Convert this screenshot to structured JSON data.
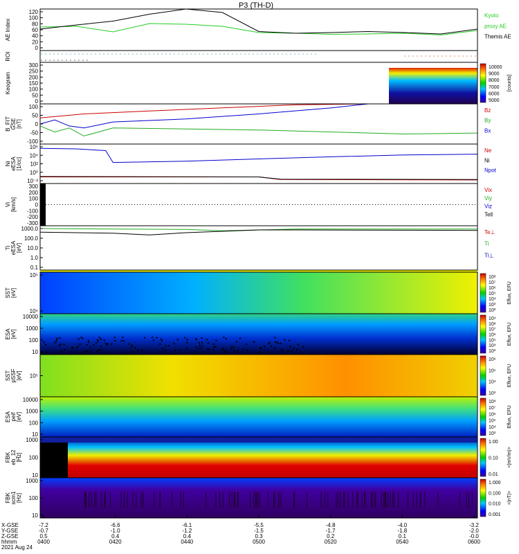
{
  "chart_data": {
    "type": "line",
    "title": "P3 (TH-D)",
    "panels": [
      {
        "id": "ae",
        "labels": [
          "AE Index"
        ],
        "yticks": [
          "120",
          "100",
          "80",
          "60",
          "40",
          "20",
          "0"
        ],
        "ylim": [
          0,
          120
        ],
        "legend": [
          {
            "text": "Kyoto",
            "color": "#22cc22"
          },
          {
            "text": "proxy AE",
            "color": "#22cc22"
          },
          {
            "text": "Themis AE",
            "color": "#000000"
          }
        ],
        "series": [
          {
            "name": "Kyoto proxy AE",
            "color": "#22cc22",
            "x": [
              0,
              5,
              10,
              15,
              20,
              25,
              30,
              35,
              40,
              45,
              50,
              55,
              60
            ],
            "y": [
              68,
              70,
              54,
              78,
              76,
              70,
              52,
              50,
              47,
              48,
              50,
              45,
              58
            ]
          },
          {
            "name": "Themis AE",
            "color": "#000000",
            "x": [
              0,
              5,
              10,
              15,
              20,
              25,
              30,
              35,
              40,
              45,
              50,
              55,
              60
            ],
            "y": [
              62,
              74,
              85,
              105,
              120,
              110,
              55,
              50,
              52,
              55,
              52,
              48,
              62
            ]
          }
        ]
      },
      {
        "id": "roi",
        "labels": [
          "ROI"
        ],
        "yticks": [],
        "legend": []
      },
      {
        "id": "keogram",
        "labels": [
          "Keogram"
        ],
        "yticks": [
          "300",
          "250",
          "200",
          "150",
          "100",
          "50",
          "0"
        ],
        "legend": [],
        "colorbar": {
          "label": "[counts]",
          "ticks": [
            "10000",
            "9000",
            "8000",
            "7000",
            "6000",
            "5000"
          ]
        }
      },
      {
        "id": "bfit",
        "labels": [
          "B_FIT",
          "GSE",
          "[nT]"
        ],
        "yticks": [
          "100",
          "50",
          "0",
          "-50",
          "-100"
        ],
        "ylim": [
          -100,
          100
        ],
        "legend": [
          {
            "text": "Bz",
            "color": "#cc0000"
          },
          {
            "text": "By",
            "color": "#22aa22"
          },
          {
            "text": "Bx",
            "color": "#0000cc"
          }
        ],
        "series": [
          {
            "name": "Bz",
            "color": "#cc0000",
            "x": [
              0,
              6,
              15,
              25,
              35,
              45,
              50
            ],
            "y": [
              30,
              50,
              65,
              80,
              95,
              100,
              100
            ]
          },
          {
            "name": "By",
            "color": "#22aa22",
            "x": [
              0,
              2,
              4,
              6,
              8,
              10,
              30,
              40,
              50,
              60
            ],
            "y": [
              -10,
              -40,
              -20,
              -60,
              -40,
              -20,
              -30,
              -40,
              -50,
              -45
            ]
          },
          {
            "name": "Bx",
            "color": "#0000cc",
            "x": [
              0,
              2,
              4,
              6,
              10,
              20,
              30,
              40,
              45
            ],
            "y": [
              0,
              20,
              -10,
              -20,
              10,
              25,
              50,
              80,
              100
            ]
          }
        ]
      },
      {
        "id": "ni",
        "labels": [
          "Ni",
          "eESA",
          "[1/cc]"
        ],
        "yticks": [
          "10⁶",
          "10⁴",
          "10²",
          "10⁰",
          "10⁻²"
        ],
        "legend": [
          {
            "text": "Ne",
            "color": "#cc0000"
          },
          {
            "text": "Ni",
            "color": "#000000"
          },
          {
            "text": "Npot",
            "color": "#0000cc"
          }
        ],
        "series": [
          {
            "name": "Ni",
            "color": "#0000cc",
            "x": [
              0,
              5,
              9,
              10,
              20,
              30,
              40,
              50,
              60
            ],
            "y": [
              5.0,
              4.9,
              4.5,
              1.8,
              2.1,
              2.6,
              3.1,
              3.5,
              3.7
            ]
          },
          {
            "name": "Ne",
            "color": "#cc0000",
            "x": [
              0,
              30,
              33,
              60
            ],
            "y": [
              -1.5,
              -1.5,
              -2.1,
              -2.2
            ]
          },
          {
            "name": "Npot",
            "color": "#000000",
            "x": [
              0,
              30,
              33,
              60
            ],
            "y": [
              -1.4,
              -1.5,
              -2.0,
              -2.1
            ]
          }
        ]
      },
      {
        "id": "vi",
        "labels": [
          "Vi",
          "[km/s]"
        ],
        "yticks": [
          "300",
          "200",
          "100",
          "0",
          "-100",
          "-200",
          "-300"
        ],
        "legend": [
          {
            "text": "Vix",
            "color": "#cc0000"
          },
          {
            "text": "Viy",
            "color": "#22aa22"
          },
          {
            "text": "Viz",
            "color": "#0000cc"
          },
          {
            "text": "Tell",
            "color": "#000000"
          }
        ]
      },
      {
        "id": "ti",
        "labels": [
          "Ti",
          "eESA",
          "[eV]"
        ],
        "yticks": [
          "1000.0",
          "100.0",
          "10.0",
          "1.0",
          "0.1"
        ],
        "legend": [
          {
            "text": "Te⊥",
            "color": "#cc0000"
          },
          {
            "text": "Ti",
            "color": "#22aa22"
          },
          {
            "text": "Ti⊥",
            "color": "#0000cc"
          }
        ],
        "series": [
          {
            "name": "Te",
            "color": "#22aa22",
            "x": [
              0,
              10,
              20,
              25,
              30,
              35,
              60
            ],
            "y": [
              3.0,
              2.95,
              2.9,
              2.75,
              2.85,
              2.95,
              2.95
            ]
          },
          {
            "name": "Ti",
            "color": "#000000",
            "x": [
              0,
              10,
              15,
              20,
              30,
              35,
              60
            ],
            "y": [
              2.6,
              2.5,
              2.3,
              2.55,
              2.85,
              2.85,
              2.8
            ]
          }
        ]
      },
      {
        "id": "sst_e",
        "labels": [
          "SST",
          "[eV]"
        ],
        "yticks": [
          "10⁵",
          "10⁴"
        ],
        "legend": [],
        "colorbar": {
          "label": "Eflux, EFU",
          "ticks": [
            "10⁸",
            "10⁷",
            "10⁶",
            "10⁵",
            "10⁴",
            "10³",
            "10²"
          ]
        }
      },
      {
        "id": "esa_e",
        "labels": [
          "ESA",
          "[eV]"
        ],
        "yticks": [
          "10000",
          "1000",
          "100",
          "10"
        ],
        "legend": [],
        "colorbar": {
          "label": "Eflux, EFU",
          "ticks": [
            "10⁹",
            "10⁸",
            "10⁷",
            "10⁶",
            "10⁵",
            "10⁴",
            "10³"
          ]
        }
      },
      {
        "id": "sst_i",
        "labels": [
          "SST",
          "pSSF",
          "[eV]"
        ],
        "yticks": [
          "10⁵"
        ],
        "legend": [],
        "colorbar": {
          "label": "Eflux, EFU",
          "ticks": [
            "10⁶",
            "10⁵",
            "10⁴",
            "10³"
          ]
        }
      },
      {
        "id": "esa_i",
        "labels": [
          "ESA",
          "peif",
          "[eV]"
        ],
        "yticks": [
          "10000",
          "1000",
          "100",
          "10"
        ],
        "legend": [],
        "colorbar": {
          "label": "Eflux, EFU",
          "ticks": [
            "10⁸",
            "10⁷",
            "10⁶",
            "10⁵",
            "10⁴",
            "10³"
          ]
        }
      },
      {
        "id": "fbk_e",
        "labels": [
          "FBK",
          "eb_12",
          "[Hz]"
        ],
        "yticks": [
          "1000",
          "100",
          "10"
        ],
        "legend": [],
        "colorbar": {
          "label": "<|mV/m|>",
          "ticks": [
            "1.00",
            "0.10",
            "0.01"
          ]
        }
      },
      {
        "id": "fbk_b",
        "labels": [
          "FBK",
          "scm1",
          "[Hz]"
        ],
        "yticks": [
          "1000",
          "100",
          "10"
        ],
        "legend": [],
        "colorbar": {
          "label": "<|nT|>",
          "ticks": [
            "1.000",
            "0.100",
            "0.010",
            "0.001"
          ]
        }
      }
    ],
    "xaxis": {
      "row_labels": [
        "X-GSE",
        "Y-GSE",
        "Z-GSE",
        "hhmm",
        "2021 Aug 24"
      ],
      "columns": [
        {
          "v": [
            "-7.2",
            "-0.7",
            "0.5",
            "0400"
          ]
        },
        {
          "v": [
            "-6.6",
            "-1.0",
            "0.4",
            "0420"
          ]
        },
        {
          "v": [
            "-6.1",
            "-1.2",
            "0.4",
            "0440"
          ]
        },
        {
          "v": [
            "-5.5",
            "-1.5",
            "0.3",
            "0500"
          ]
        },
        {
          "v": [
            "-4.8",
            "-1.7",
            "0.2",
            "0520"
          ]
        },
        {
          "v": [
            "-4.0",
            "-1.8",
            "0.1",
            "0540"
          ]
        },
        {
          "v": [
            "-3.2",
            "-2.0",
            "-0.0",
            "0600"
          ]
        }
      ]
    }
  }
}
